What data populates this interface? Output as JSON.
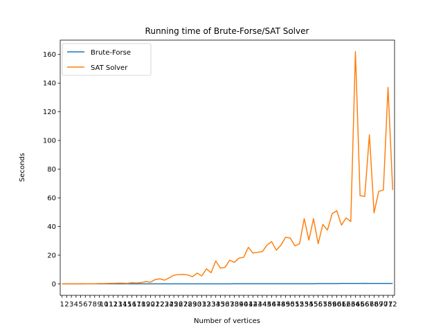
{
  "chart_data": {
    "type": "line",
    "title": "Running time of Brute-Forse/SAT Solver",
    "xlabel": "Number of vertices",
    "ylabel": "Seconds",
    "x": [
      1,
      2,
      3,
      4,
      5,
      6,
      7,
      8,
      9,
      10,
      11,
      12,
      13,
      14,
      15,
      16,
      17,
      18,
      19,
      20,
      21,
      22,
      23,
      24,
      25,
      26,
      27,
      28,
      29,
      30,
      31,
      32,
      33,
      34,
      35,
      36,
      37,
      38,
      39,
      40,
      41,
      42,
      43,
      44,
      45,
      46,
      47,
      48,
      49,
      50,
      51,
      52,
      53,
      54,
      55,
      56,
      57,
      58,
      59,
      60,
      61,
      62,
      63,
      64,
      65,
      66,
      67,
      68,
      69,
      70,
      71,
      72
    ],
    "x_ticks": [
      "1",
      "2",
      "3",
      "4",
      "5",
      "6",
      "7",
      "8",
      "9",
      "10",
      "11",
      "12",
      "13",
      "14",
      "15",
      "16",
      "17",
      "18",
      "19",
      "20",
      "21",
      "22",
      "23",
      "24",
      "25",
      "26",
      "27",
      "28",
      "29",
      "30",
      "31",
      "32",
      "33",
      "34",
      "35",
      "36",
      "37",
      "38",
      "39",
      "40",
      "41",
      "42",
      "43",
      "44",
      "45",
      "46",
      "47",
      "48",
      "49",
      "50",
      "51",
      "52",
      "53",
      "54",
      "55",
      "56",
      "57",
      "58",
      "59",
      "60",
      "61",
      "62",
      "63",
      "64",
      "65",
      "66",
      "67",
      "68",
      "69",
      "70",
      "71",
      "72"
    ],
    "ylim": [
      -8,
      170
    ],
    "yticks": [
      0,
      20,
      40,
      60,
      80,
      100,
      120,
      140,
      160
    ],
    "legend_position": "top-left",
    "grid": false,
    "series": [
      {
        "name": "Brute-Forse",
        "color": "#1f77b4",
        "values": [
          0,
          0,
          0,
          0,
          0,
          0,
          0,
          0,
          0,
          0,
          0,
          0,
          0,
          0,
          0,
          0,
          0,
          0,
          0,
          0,
          0,
          0,
          0,
          0,
          0,
          0,
          0,
          0,
          0,
          0,
          0,
          0,
          0,
          0,
          0,
          0,
          0,
          0.1,
          0.1,
          0.1,
          0.1,
          0.1,
          0.1,
          0.1,
          0.1,
          0.1,
          0.1,
          0.1,
          0.1,
          0.1,
          0.1,
          0.1,
          0.1,
          0.1,
          0.1,
          0.2,
          0.2,
          0.2,
          0.2,
          0.2,
          0.3,
          0.3,
          0.3,
          0.3,
          0.3,
          0.4,
          0.3,
          0.3,
          0.3,
          0.3,
          0.3,
          0.3
        ]
      },
      {
        "name": "SAT Solver",
        "color": "#ff7f0e",
        "values": [
          0,
          0,
          0,
          0,
          0,
          0.1,
          0.1,
          0.1,
          0.2,
          0.2,
          0.3,
          0.4,
          0.5,
          0.5,
          0.3,
          0.8,
          0.6,
          0.9,
          1.6,
          1.2,
          3.0,
          3.5,
          2.6,
          4.2,
          6.0,
          6.5,
          6.6,
          6.2,
          5.0,
          7.5,
          5.5,
          10.5,
          7.8,
          16.0,
          11.0,
          11.5,
          16.5,
          15.0,
          18.0,
          18.5,
          25.5,
          21.5,
          22.0,
          22.5,
          27.0,
          29.5,
          23.5,
          27.0,
          32.5,
          32.0,
          26.5,
          28.0,
          45.5,
          30.5,
          45.5,
          28.0,
          41.5,
          37.5,
          49.0,
          51.0,
          41.0,
          46.0,
          43.5,
          162.0,
          61.5,
          61.0,
          104.0,
          49.5,
          64.5,
          65.5,
          137.0,
          65.5
        ]
      }
    ]
  }
}
